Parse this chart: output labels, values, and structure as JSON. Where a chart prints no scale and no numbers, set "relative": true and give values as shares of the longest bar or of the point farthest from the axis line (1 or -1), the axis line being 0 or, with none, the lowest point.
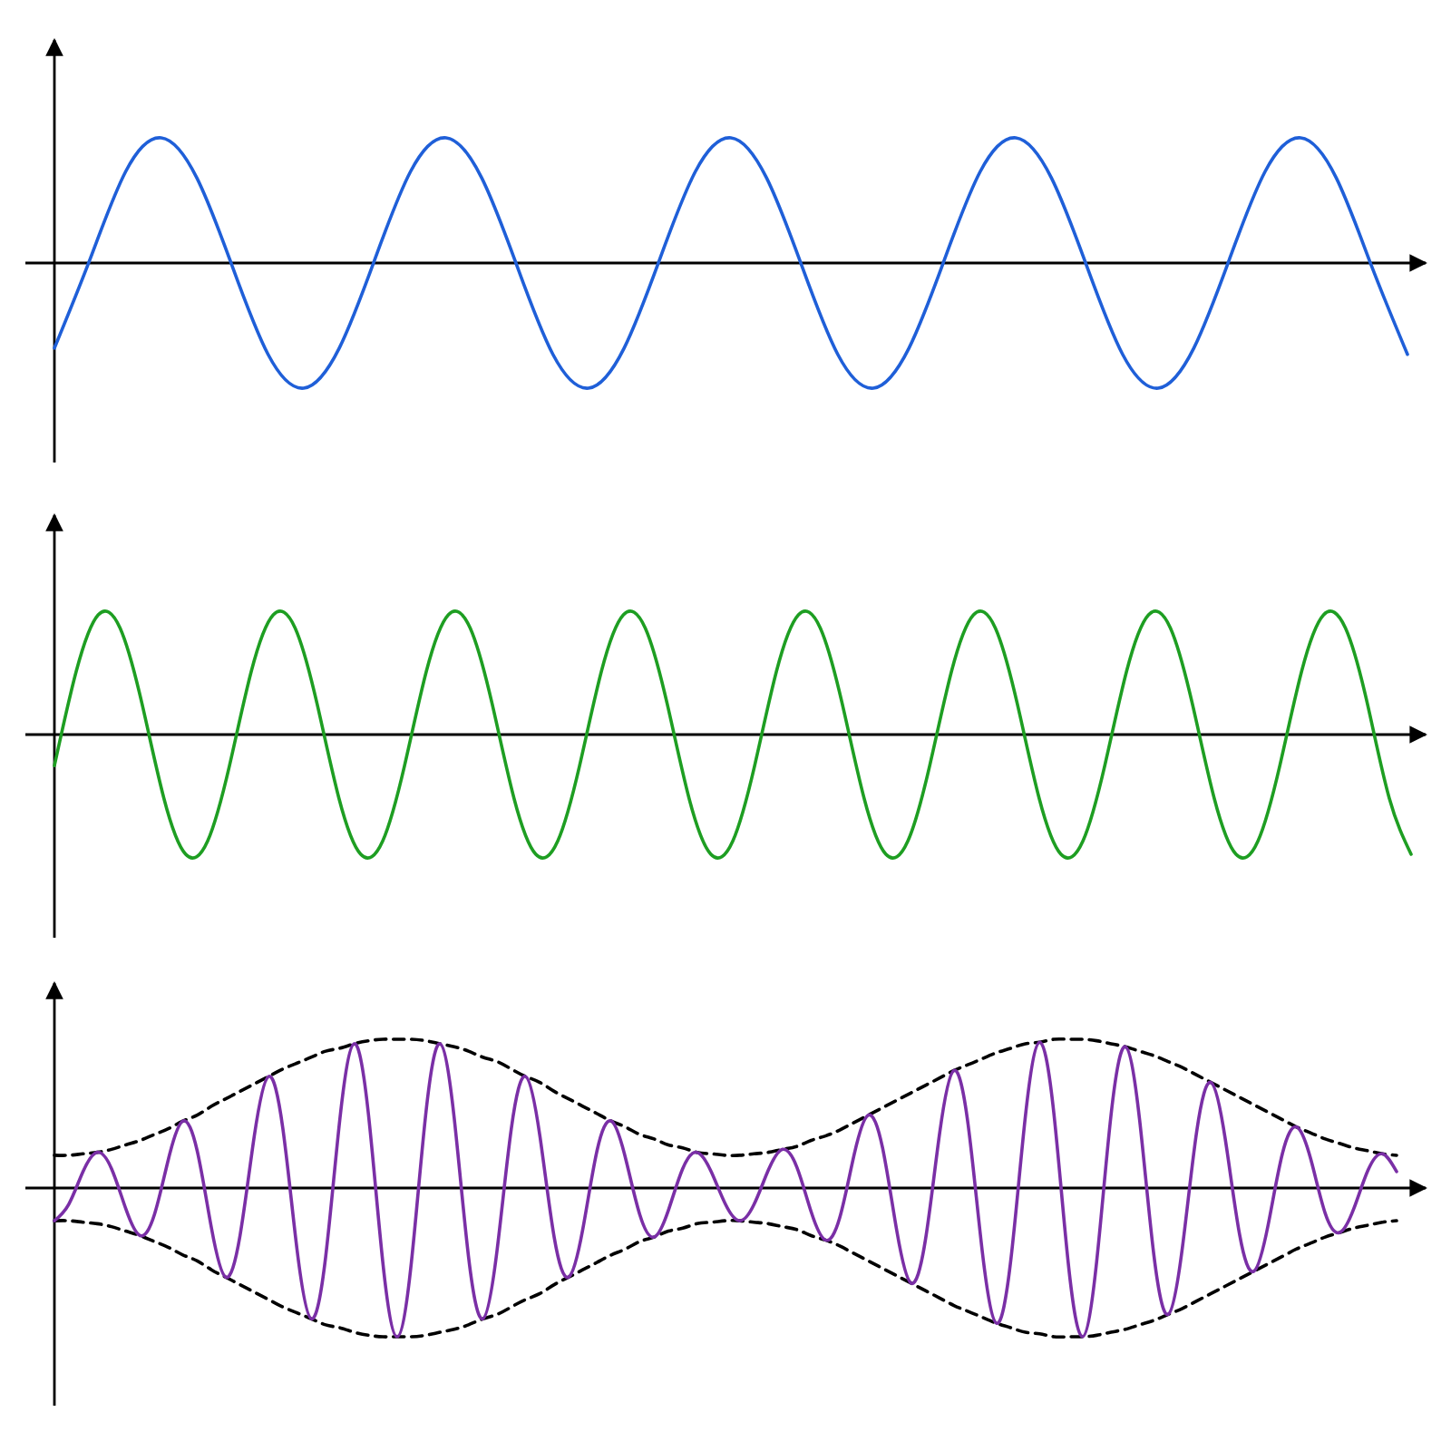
{
  "chart_data": [
    {
      "type": "line",
      "relative": true,
      "categories": [
        null,
        null,
        null,
        null,
        null,
        null,
        null,
        null,
        null,
        null,
        null,
        null,
        null,
        null,
        null,
        null,
        null,
        null,
        null,
        null,
        null,
        null,
        null,
        null,
        null,
        null,
        null,
        null,
        null,
        null,
        null,
        null,
        null,
        null,
        null,
        null,
        null,
        null,
        null
      ],
      "series": [
        {
          "color": "#1f5fd8",
          "values": [
            -0.68,
            0.03,
            0.73,
            1.0,
            0.68,
            -0.03,
            -0.73,
            -1.0,
            -0.68,
            0.03,
            0.73,
            1.0,
            0.68,
            -0.03,
            -0.73,
            -1.0,
            -0.68,
            0.03,
            0.73,
            1.0,
            0.68,
            -0.03,
            -0.73,
            -1.0,
            -0.68,
            0.03,
            0.73,
            1.0,
            0.68,
            -0.03,
            -0.73,
            -1.0,
            -0.68,
            0.03,
            0.73,
            1.0,
            0.68,
            -0.03,
            -0.73
          ]
        }
      ]
    },
    {
      "type": "line",
      "relative": true,
      "categories": [
        null,
        null,
        null,
        null,
        null,
        null,
        null,
        null,
        null,
        null,
        null,
        null,
        null,
        null,
        null,
        null,
        null,
        null,
        null,
        null,
        null,
        null,
        null,
        null,
        null,
        null,
        null,
        null,
        null,
        null,
        null,
        null,
        null,
        null,
        null,
        null,
        null,
        null,
        null,
        null,
        null,
        null,
        null,
        null,
        null,
        null,
        null,
        null,
        null,
        null,
        null,
        null,
        null,
        null,
        null,
        null,
        null,
        null,
        null,
        null,
        null,
        null,
        null
      ],
      "series": [
        {
          "color": "#1e9e22",
          "values": [
            -0.26,
            0.53,
            1.0,
            0.89,
            0.26,
            -0.53,
            -1.0,
            -0.89,
            -0.26,
            0.53,
            1.0,
            0.89,
            0.26,
            -0.53,
            -1.0,
            -0.89,
            -0.26,
            0.53,
            1.0,
            0.89,
            0.26,
            -0.53,
            -1.0,
            -0.89,
            -0.26,
            0.53,
            1.0,
            0.89,
            0.26,
            -0.53,
            -1.0,
            -0.89,
            -0.26,
            0.53,
            1.0,
            0.89,
            0.26,
            -0.53,
            -1.0,
            -0.89,
            -0.26,
            0.53,
            1.0,
            0.89,
            0.26,
            -0.53,
            -1.0,
            -0.89,
            -0.26,
            0.53,
            1.0,
            0.89,
            0.26,
            -0.53,
            -1.0,
            -0.89,
            -0.26,
            0.53,
            1.0,
            0.89,
            0.26,
            -0.53,
            -1.0
          ]
        }
      ]
    },
    {
      "type": "line",
      "relative": true,
      "categories": [
        null,
        null,
        null,
        null,
        null,
        null,
        null,
        null,
        null,
        null,
        null,
        null,
        null,
        null,
        null,
        null,
        null,
        null,
        null,
        null,
        null,
        null,
        null,
        null,
        null,
        null,
        null,
        null,
        null,
        null,
        null,
        null,
        null,
        null,
        null,
        null,
        null,
        null,
        null,
        null,
        null,
        null,
        null,
        null,
        null,
        null,
        null,
        null,
        null,
        null,
        null,
        null,
        null,
        null,
        null,
        null,
        null,
        null,
        null,
        null,
        null,
        null,
        null,
        null,
        null,
        null,
        null,
        null,
        null,
        null,
        null,
        null,
        null,
        null,
        null,
        null,
        null,
        null,
        null,
        null,
        null,
        null,
        null,
        null,
        null,
        null,
        null,
        null,
        null,
        null,
        null,
        null,
        null,
        null,
        null
      ],
      "series": [
        {
          "color": "#000000",
          "line_style": "dashed",
          "values": [
            0.22,
            0.22,
            0.23,
            0.24,
            0.26,
            0.29,
            0.32,
            0.36,
            0.4,
            0.45,
            0.49,
            0.55,
            0.6,
            0.65,
            0.7,
            0.75,
            0.8,
            0.84,
            0.88,
            0.92,
            0.94,
            0.97,
            0.99,
            1.0,
            1.0,
            1.0,
            0.99,
            0.97,
            0.95,
            0.92,
            0.88,
            0.85,
            0.8,
            0.75,
            0.71,
            0.65,
            0.6,
            0.55,
            0.5,
            0.45,
            0.41,
            0.36,
            0.33,
            0.29,
            0.27,
            0.24,
            0.23,
            0.22,
            0.22,
            0.23,
            0.24,
            0.26,
            0.28,
            0.32,
            0.35,
            0.39,
            0.44,
            0.49,
            0.54,
            0.59,
            0.64,
            0.69,
            0.74,
            0.79,
            0.83,
            0.87,
            0.91,
            0.94,
            0.97,
            0.98,
            1.0,
            1.0,
            1.0,
            0.99,
            0.97,
            0.95,
            0.92,
            0.89,
            0.85,
            0.81,
            0.76,
            0.71,
            0.66,
            0.61,
            0.56,
            0.51,
            0.46,
            0.41,
            0.37,
            0.33,
            0.3,
            0.27,
            0.25,
            0.23,
            0.22
          ]
        },
        {
          "color": "#000000",
          "line_style": "dashed",
          "values": [
            -0.22,
            -0.22,
            -0.23,
            -0.24,
            -0.26,
            -0.29,
            -0.32,
            -0.36,
            -0.4,
            -0.45,
            -0.49,
            -0.55,
            -0.6,
            -0.65,
            -0.7,
            -0.75,
            -0.8,
            -0.84,
            -0.88,
            -0.92,
            -0.94,
            -0.97,
            -0.99,
            -1.0,
            -1.0,
            -1.0,
            -0.99,
            -0.97,
            -0.95,
            -0.92,
            -0.88,
            -0.85,
            -0.8,
            -0.75,
            -0.71,
            -0.65,
            -0.6,
            -0.55,
            -0.5,
            -0.45,
            -0.41,
            -0.36,
            -0.33,
            -0.29,
            -0.27,
            -0.24,
            -0.23,
            -0.22,
            -0.22,
            -0.23,
            -0.24,
            -0.26,
            -0.28,
            -0.32,
            -0.35,
            -0.39,
            -0.44,
            -0.49,
            -0.54,
            -0.59,
            -0.64,
            -0.69,
            -0.74,
            -0.79,
            -0.83,
            -0.87,
            -0.91,
            -0.94,
            -0.97,
            -0.98,
            -1.0,
            -1.0,
            -1.0,
            -0.99,
            -0.97,
            -0.95,
            -0.92,
            -0.89,
            -0.85,
            -0.81,
            -0.76,
            -0.71,
            -0.66,
            -0.61,
            -0.56,
            -0.51,
            -0.46,
            -0.41,
            -0.37,
            -0.33,
            -0.3,
            -0.27,
            -0.25,
            -0.23,
            -0.22
          ]
        },
        {
          "color": "#7a2fa6",
          "values": [
            -0.22,
            -0.11,
            0.11,
            0.24,
            0.13,
            -0.14,
            -0.32,
            -0.18,
            0.2,
            0.45,
            0.25,
            -0.27,
            -0.6,
            -0.32,
            0.35,
            0.75,
            0.4,
            -0.42,
            -0.88,
            -0.46,
            0.47,
            0.97,
            0.49,
            -0.5,
            -1.0,
            -0.5,
            0.49,
            0.97,
            0.47,
            -0.46,
            -0.88,
            -0.42,
            0.4,
            0.75,
            0.35,
            -0.33,
            -0.6,
            -0.28,
            0.25,
            0.45,
            0.2,
            -0.18,
            -0.33,
            -0.15,
            0.13,
            0.24,
            0.11,
            -0.11,
            -0.22,
            -0.11,
            0.12,
            0.26,
            0.14,
            -0.16,
            -0.35,
            -0.2,
            0.22,
            0.49,
            0.27,
            -0.29,
            -0.64,
            -0.35,
            0.37,
            0.79,
            0.42,
            -0.44,
            -0.91,
            -0.47,
            0.48,
            0.98,
            0.5,
            -0.5,
            -1.0,
            -0.49,
            0.49,
            0.95,
            0.46,
            -0.45,
            -0.85,
            -0.4,
            0.38,
            0.71,
            0.33,
            -0.31,
            -0.56,
            -0.25,
            0.23,
            0.41,
            0.19,
            -0.17,
            -0.3,
            -0.14,
            0.12,
            0.23,
            0.11
          ]
        }
      ]
    }
  ]
}
